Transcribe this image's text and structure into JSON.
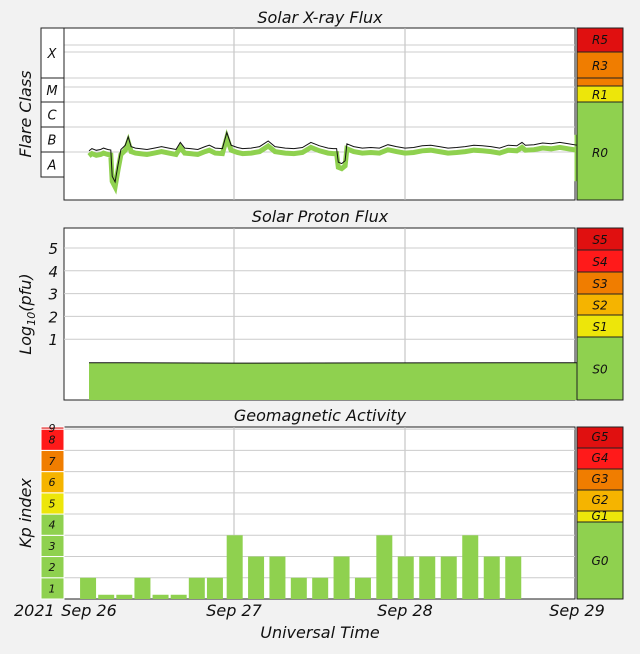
{
  "chart_data": [
    {
      "type": "line",
      "title": "Solar X-ray Flux",
      "ylabel": "Flare Class",
      "flare_classes": [
        "X",
        "M",
        "C",
        "B",
        "A"
      ],
      "radio_scales": [
        {
          "label": "R5",
          "color": "#e01010"
        },
        {
          "label": "R3",
          "color": "#f07d00"
        },
        {
          "label": "R1",
          "color": "#ede60a"
        },
        {
          "label": "R0",
          "color": "#8fd14f"
        }
      ],
      "series": [
        {
          "values": [
            [
              0.0,
              -7.5
            ],
            [
              0.02,
              -7.42
            ],
            [
              0.05,
              -7.48
            ],
            [
              0.08,
              -7.45
            ],
            [
              0.1,
              -7.4
            ],
            [
              0.13,
              -7.45
            ],
            [
              0.15,
              -7.47
            ],
            [
              0.16,
              -8.4
            ],
            [
              0.18,
              -8.6
            ],
            [
              0.2,
              -8.0
            ],
            [
              0.22,
              -7.45
            ],
            [
              0.25,
              -7.3
            ],
            [
              0.27,
              -7.0
            ],
            [
              0.29,
              -7.35
            ],
            [
              0.32,
              -7.4
            ],
            [
              0.35,
              -7.42
            ],
            [
              0.4,
              -7.45
            ],
            [
              0.45,
              -7.4
            ],
            [
              0.5,
              -7.35
            ],
            [
              0.55,
              -7.4
            ],
            [
              0.6,
              -7.45
            ],
            [
              0.63,
              -7.2
            ],
            [
              0.66,
              -7.4
            ],
            [
              0.7,
              -7.42
            ],
            [
              0.75,
              -7.45
            ],
            [
              0.8,
              -7.35
            ],
            [
              0.83,
              -7.3
            ],
            [
              0.87,
              -7.4
            ],
            [
              0.92,
              -7.42
            ],
            [
              0.95,
              -6.85
            ],
            [
              0.98,
              -7.3
            ],
            [
              1.02,
              -7.38
            ],
            [
              1.05,
              -7.42
            ],
            [
              1.1,
              -7.4
            ],
            [
              1.15,
              -7.35
            ],
            [
              1.2,
              -7.15
            ],
            [
              1.24,
              -7.35
            ],
            [
              1.3,
              -7.4
            ],
            [
              1.35,
              -7.42
            ],
            [
              1.4,
              -7.38
            ],
            [
              1.45,
              -7.2
            ],
            [
              1.5,
              -7.32
            ],
            [
              1.55,
              -7.4
            ],
            [
              1.58,
              -7.42
            ],
            [
              1.6,
              -7.42
            ],
            [
              1.61,
              -7.9
            ],
            [
              1.63,
              -7.95
            ],
            [
              1.65,
              -7.85
            ],
            [
              1.66,
              -7.25
            ],
            [
              1.7,
              -7.35
            ],
            [
              1.75,
              -7.4
            ],
            [
              1.8,
              -7.38
            ],
            [
              1.85,
              -7.4
            ],
            [
              1.9,
              -7.28
            ],
            [
              1.95,
              -7.35
            ],
            [
              2.0,
              -7.4
            ],
            [
              2.05,
              -7.38
            ],
            [
              2.1,
              -7.32
            ],
            [
              2.15,
              -7.3
            ],
            [
              2.2,
              -7.35
            ],
            [
              2.25,
              -7.4
            ],
            [
              2.3,
              -7.38
            ],
            [
              2.35,
              -7.35
            ],
            [
              2.4,
              -7.3
            ],
            [
              2.45,
              -7.32
            ],
            [
              2.5,
              -7.35
            ],
            [
              2.55,
              -7.4
            ],
            [
              2.6,
              -7.3
            ],
            [
              2.65,
              -7.32
            ],
            [
              2.68,
              -7.2
            ],
            [
              2.7,
              -7.3
            ],
            [
              2.75,
              -7.28
            ],
            [
              2.8,
              -7.22
            ],
            [
              2.85,
              -7.25
            ],
            [
              2.9,
              -7.2
            ],
            [
              2.95,
              -7.25
            ],
            [
              3.0,
              -7.3
            ],
            [
              3.05,
              -7.28
            ],
            [
              3.1,
              -7.22
            ],
            [
              3.15,
              -7.18
            ],
            [
              3.2,
              -7.22
            ],
            [
              3.22,
              -7.25
            ],
            [
              3.23,
              -8.2
            ],
            [
              3.25,
              -8.4
            ],
            [
              3.26,
              -8.1
            ],
            [
              3.28,
              -7.7
            ],
            [
              3.3,
              -7.2
            ],
            [
              3.33,
              -6.95
            ],
            [
              3.36,
              -6.75
            ],
            [
              3.4,
              -6.9
            ],
            [
              3.45,
              -7.0
            ],
            [
              3.5,
              -7.05
            ],
            [
              3.55,
              -7.1
            ],
            [
              3.6,
              -7.15
            ],
            [
              3.65,
              -7.2
            ],
            [
              3.7,
              -7.25
            ],
            [
              3.75,
              -7.28
            ],
            [
              3.8,
              -7.32
            ],
            [
              3.85,
              -7.35
            ],
            [
              3.9,
              -7.35
            ],
            [
              3.95,
              -7.38
            ],
            [
              4.0,
              -7.4
            ],
            [
              4.05,
              -7.4
            ],
            [
              4.1,
              -7.42
            ],
            [
              4.15,
              -7.42
            ],
            [
              4.2,
              -7.45
            ],
            [
              4.25,
              -7.45
            ],
            [
              4.3,
              -7.42
            ],
            [
              4.35,
              -7.45
            ],
            [
              4.4,
              -7.45
            ],
            [
              4.45,
              -7.47
            ],
            [
              4.5,
              -7.45
            ],
            [
              4.55,
              -7.48
            ],
            [
              4.6,
              -7.48
            ],
            [
              4.65,
              -7.48
            ]
          ]
        }
      ]
    },
    {
      "type": "area",
      "title": "Solar Proton Flux",
      "ylabel": "Log10(pfu)",
      "ylabel_main": "Log",
      "ylabel_sub": "10",
      "ylabel_end": "(pfu)",
      "yticks": [
        1,
        2,
        3,
        4,
        5
      ],
      "ylim": [
        -1.25,
        6
      ],
      "radiation_scales": [
        {
          "label": "S5",
          "color": "#e01010"
        },
        {
          "label": "S4",
          "color": "#ff1a1a"
        },
        {
          "label": "S3",
          "color": "#f07d00"
        },
        {
          "label": "S2",
          "color": "#f5b400"
        },
        {
          "label": "S1",
          "color": "#ede60a"
        },
        {
          "label": "S0",
          "color": "#8fd14f"
        }
      ],
      "series": [
        {
          "values": [
            [
              0.0,
              -0.03
            ],
            [
              1.0,
              -0.05
            ],
            [
              2.0,
              -0.04
            ],
            [
              3.0,
              -0.03
            ],
            [
              4.0,
              0.0
            ],
            [
              4.65,
              0.0
            ]
          ]
        }
      ]
    },
    {
      "type": "bar",
      "title": "Geomagnetic Activity",
      "ylabel": "Kp index",
      "xlabel": "Universal Time",
      "year_label": "2021",
      "kp_levels": [
        "1",
        "2",
        "3",
        "4",
        "5",
        "6",
        "7",
        "8",
        "9"
      ],
      "kp_colors": [
        "#8fd14f",
        "#8fd14f",
        "#8fd14f",
        "#8fd14f",
        "#ede60a",
        "#f5b400",
        "#f07d00",
        "#ff1a1a",
        "#e01010"
      ],
      "geo_scales": [
        {
          "label": "G5",
          "color": "#e01010"
        },
        {
          "label": "G4",
          "color": "#ff1a1a"
        },
        {
          "label": "G3",
          "color": "#f07d00"
        },
        {
          "label": "G2",
          "color": "#f5b400"
        },
        {
          "label": "G1",
          "color": "#ede60a"
        },
        {
          "label": "G0",
          "color": "#8fd14f"
        }
      ],
      "x_tick_labels": [
        "Sep 26",
        "Sep 27",
        "Sep 28",
        "Sep 29"
      ],
      "values": [
        1,
        0.2,
        0.2,
        1,
        0.2,
        0.2,
        1,
        1,
        3,
        2,
        2,
        1,
        1,
        2,
        1,
        3,
        2,
        2,
        2,
        3,
        2,
        2
      ],
      "bar_color": "#8fd14f"
    }
  ]
}
